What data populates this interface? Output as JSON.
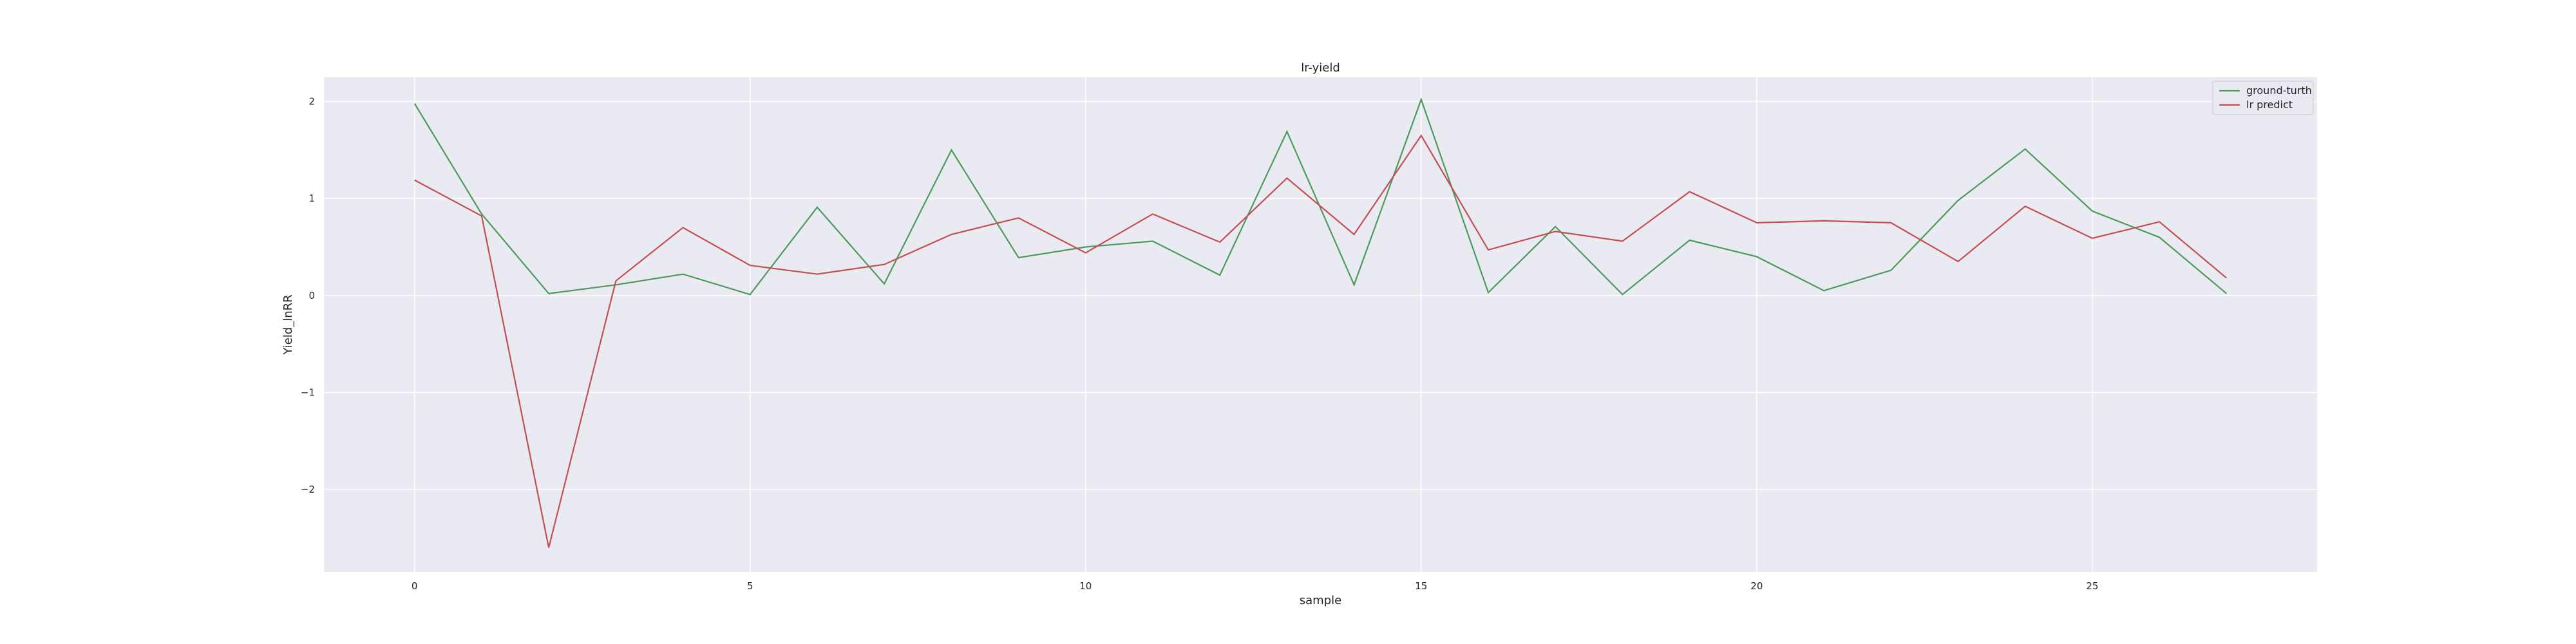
{
  "chart_data": {
    "type": "line",
    "title": "lr-yield",
    "xlabel": "sample",
    "ylabel": "Yield_lnRR",
    "xlim": [
      -1.35,
      28.35
    ],
    "ylim": [
      -2.85,
      2.25
    ],
    "x_ticks": [
      0,
      5,
      10,
      15,
      20,
      25
    ],
    "y_ticks": [
      -2,
      -1,
      0,
      1,
      2
    ],
    "grid": true,
    "legend_position": "top-right",
    "x": [
      0,
      1,
      2,
      3,
      4,
      5,
      6,
      7,
      8,
      9,
      10,
      11,
      12,
      13,
      14,
      15,
      16,
      17,
      18,
      19,
      20,
      21,
      22,
      23,
      24,
      25,
      26,
      27
    ],
    "series": [
      {
        "name": "ground-turth",
        "color": "#4c9a5b",
        "values": [
          1.98,
          0.84,
          0.02,
          0.11,
          0.22,
          0.01,
          0.91,
          0.12,
          1.5,
          0.39,
          0.5,
          0.56,
          0.21,
          1.69,
          0.11,
          2.02,
          0.03,
          0.71,
          0.01,
          0.57,
          0.4,
          0.05,
          0.26,
          0.98,
          1.51,
          0.87,
          0.6,
          0.02
        ]
      },
      {
        "name": "lr predict",
        "color": "#c44e52",
        "values": [
          1.19,
          0.82,
          -2.6,
          0.15,
          0.7,
          0.31,
          0.22,
          0.32,
          0.63,
          0.8,
          0.44,
          0.84,
          0.55,
          1.21,
          0.63,
          1.65,
          0.47,
          0.66,
          0.56,
          1.07,
          0.75,
          0.77,
          0.75,
          0.35,
          0.92,
          0.59,
          0.76,
          0.18
        ]
      }
    ]
  },
  "colors": {
    "plot_background": "#eaeaf2",
    "grid": "#ffffff",
    "text": "#262626"
  }
}
